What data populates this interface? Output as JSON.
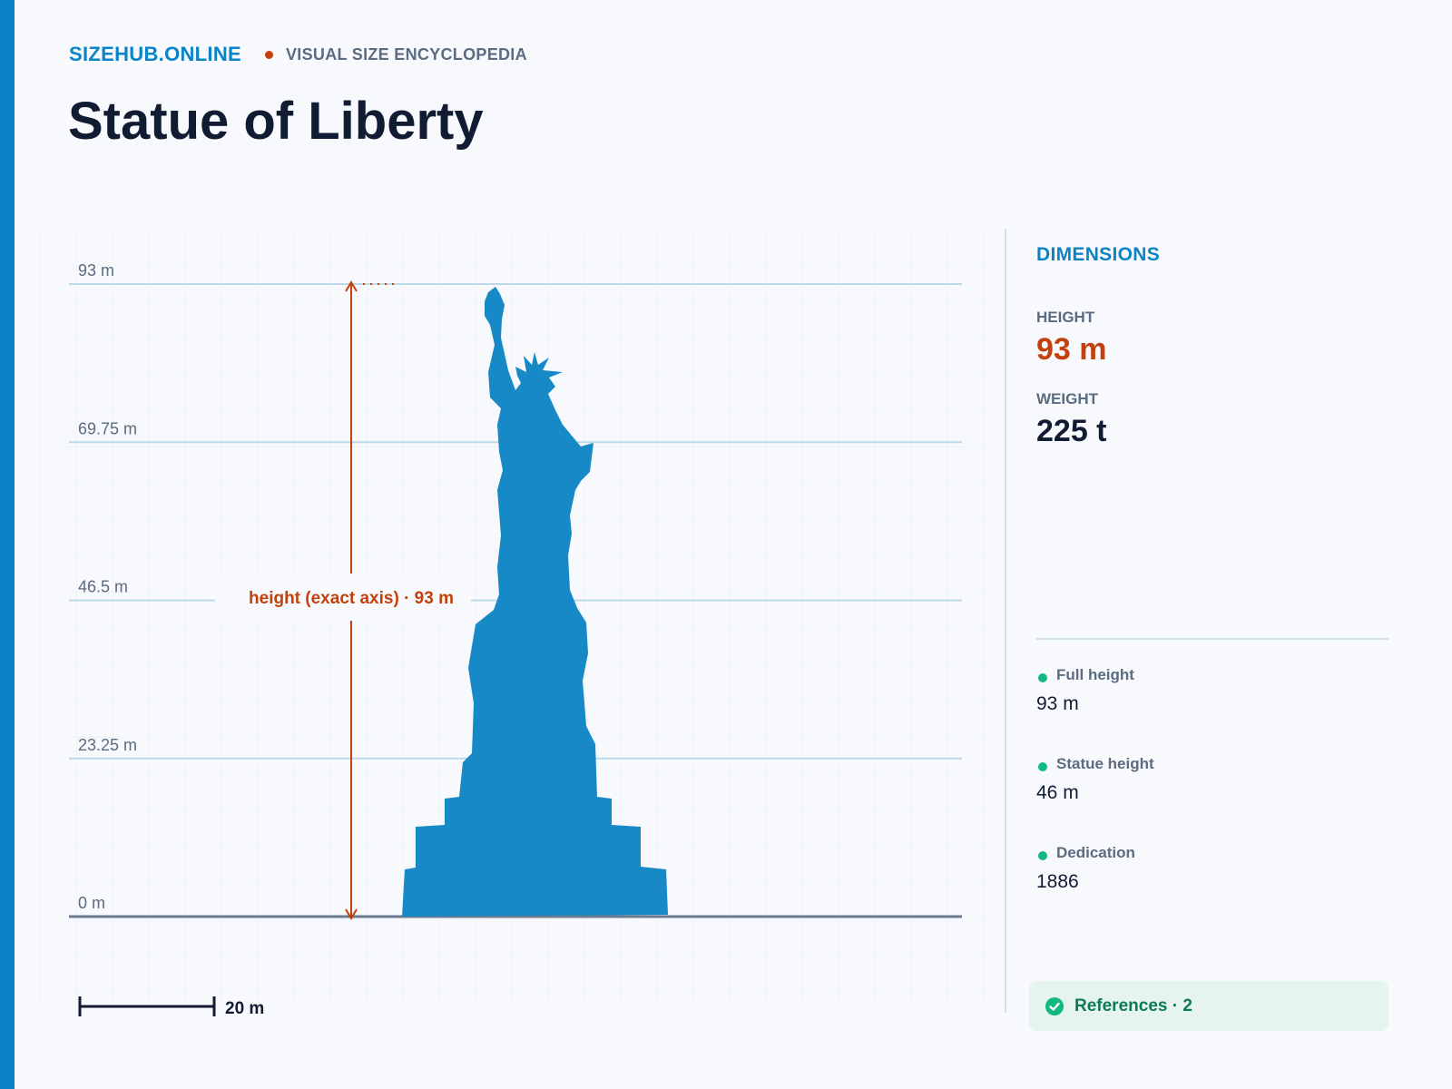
{
  "brand": {
    "site": "SIZEHUB.ONLINE",
    "tagline": "VISUAL SIZE ENCYCLOPEDIA"
  },
  "title": "Statue of Liberty",
  "colors": {
    "accent": "#0a84c6",
    "highlight": "#c2410c",
    "silhouette": "#1789c6",
    "positive": "#10b981"
  },
  "chart_data": {
    "type": "diagram",
    "unit": "m",
    "y_ticks": [
      {
        "value": 93,
        "label": "93 m"
      },
      {
        "value": 69.75,
        "label": "69.75 m"
      },
      {
        "value": 46.5,
        "label": "46.5 m"
      },
      {
        "value": 23.25,
        "label": "23.25 m"
      },
      {
        "value": 0,
        "label": "0 m"
      }
    ],
    "ylim": [
      0,
      93
    ],
    "measure": {
      "label": "height (exact axis) · 93 m",
      "value": 93
    },
    "scale_bar": {
      "label": "20 m",
      "value": 20
    },
    "subject": "statue-silhouette"
  },
  "panel": {
    "heading": "DIMENSIONS",
    "height_label": "HEIGHT",
    "height_value": "93 m",
    "weight_label": "WEIGHT",
    "weight_value": "225 t",
    "facts": [
      {
        "label": "Full height",
        "value": "93 m"
      },
      {
        "label": "Statue height",
        "value": "46 m"
      },
      {
        "label": "Dedication",
        "value": "1886"
      }
    ],
    "references": "References · 2"
  }
}
